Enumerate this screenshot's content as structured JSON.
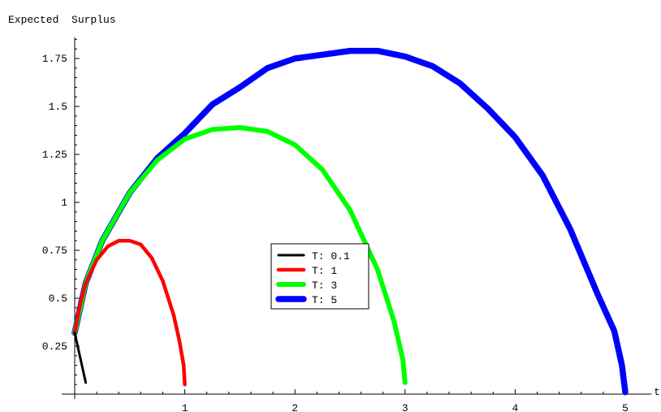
{
  "chart_data": {
    "type": "line",
    "ylabel": "Expected  Surplus",
    "xlabel": "t",
    "xlim": [
      0,
      5.15
    ],
    "ylim": [
      0,
      1.86
    ],
    "x_ticks": [
      1,
      2,
      3,
      4,
      5
    ],
    "x_tick_labels": [
      "1",
      "2",
      "3",
      "4",
      "5"
    ],
    "y_ticks": [
      0.25,
      0.5,
      0.75,
      1,
      1.25,
      1.5,
      1.75
    ],
    "y_tick_labels": [
      "0.25",
      "0.5",
      "0.75",
      "1",
      "1.25",
      "1.5",
      "1.75"
    ],
    "grid": false,
    "legend_position": "center",
    "legend_prefix": "T:",
    "series": [
      {
        "name": "0.1",
        "color": "#000000",
        "stroke_width": 3,
        "x": [
          0.0,
          0.05,
          0.1
        ],
        "y": [
          0.32,
          0.19,
          0.06
        ]
      },
      {
        "name": "1",
        "color": "#ff0000",
        "stroke_width": 4.5,
        "x": [
          0.0,
          0.05,
          0.1,
          0.2,
          0.3,
          0.4,
          0.5,
          0.6,
          0.7,
          0.8,
          0.9,
          0.95,
          0.99,
          1.0
        ],
        "y": [
          0.32,
          0.47,
          0.58,
          0.7,
          0.77,
          0.8,
          0.8,
          0.78,
          0.71,
          0.59,
          0.41,
          0.28,
          0.15,
          0.05
        ]
      },
      {
        "name": "3",
        "color": "#00ff00",
        "stroke_width": 6,
        "x": [
          0.0,
          0.1,
          0.25,
          0.5,
          0.75,
          1.0,
          1.25,
          1.5,
          1.75,
          2.0,
          2.25,
          2.5,
          2.75,
          2.9,
          2.98,
          3.0
        ],
        "y": [
          0.32,
          0.58,
          0.8,
          1.05,
          1.22,
          1.33,
          1.38,
          1.39,
          1.37,
          1.3,
          1.17,
          0.96,
          0.65,
          0.38,
          0.18,
          0.06
        ]
      },
      {
        "name": "5",
        "color": "#0000ff",
        "stroke_width": 7.5,
        "x": [
          0.0,
          0.1,
          0.25,
          0.5,
          0.75,
          1.0,
          1.25,
          1.5,
          1.75,
          2.0,
          2.25,
          2.5,
          2.75,
          3.0,
          3.25,
          3.5,
          3.75,
          4.0,
          4.25,
          4.5,
          4.75,
          4.9,
          4.97,
          5.0
        ],
        "y": [
          0.32,
          0.58,
          0.8,
          1.05,
          1.23,
          1.36,
          1.51,
          1.6,
          1.7,
          1.75,
          1.77,
          1.79,
          1.79,
          1.76,
          1.71,
          1.62,
          1.49,
          1.34,
          1.14,
          0.86,
          0.52,
          0.33,
          0.15,
          0.01
        ]
      }
    ]
  }
}
